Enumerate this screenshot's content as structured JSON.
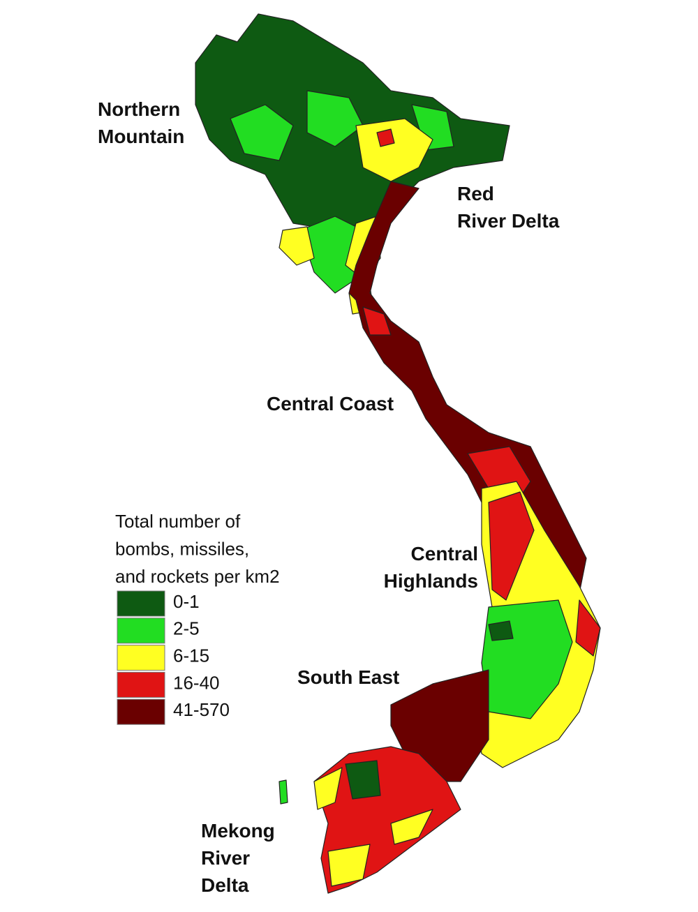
{
  "regions": [
    {
      "lines": [
        "Northern",
        "Mountain"
      ]
    },
    {
      "lines": [
        "Red",
        "River Delta"
      ]
    },
    {
      "lines": [
        "Central Coast"
      ]
    },
    {
      "lines": [
        "Central",
        "Highlands"
      ]
    },
    {
      "lines": [
        "South East"
      ]
    },
    {
      "lines": [
        "Mekong",
        "River",
        "Delta"
      ]
    }
  ],
  "legend": {
    "title_lines": [
      "Total number of",
      "bombs, missiles,",
      "and rockets per km2"
    ],
    "items": [
      {
        "label": "0-1",
        "color": "#0e5a12"
      },
      {
        "label": "2-5",
        "color": "#22dd22"
      },
      {
        "label": "6-15",
        "color": "#ffff22"
      },
      {
        "label": "16-40",
        "color": "#e01414"
      },
      {
        "label": "41-570",
        "color": "#6a0000"
      }
    ]
  }
}
